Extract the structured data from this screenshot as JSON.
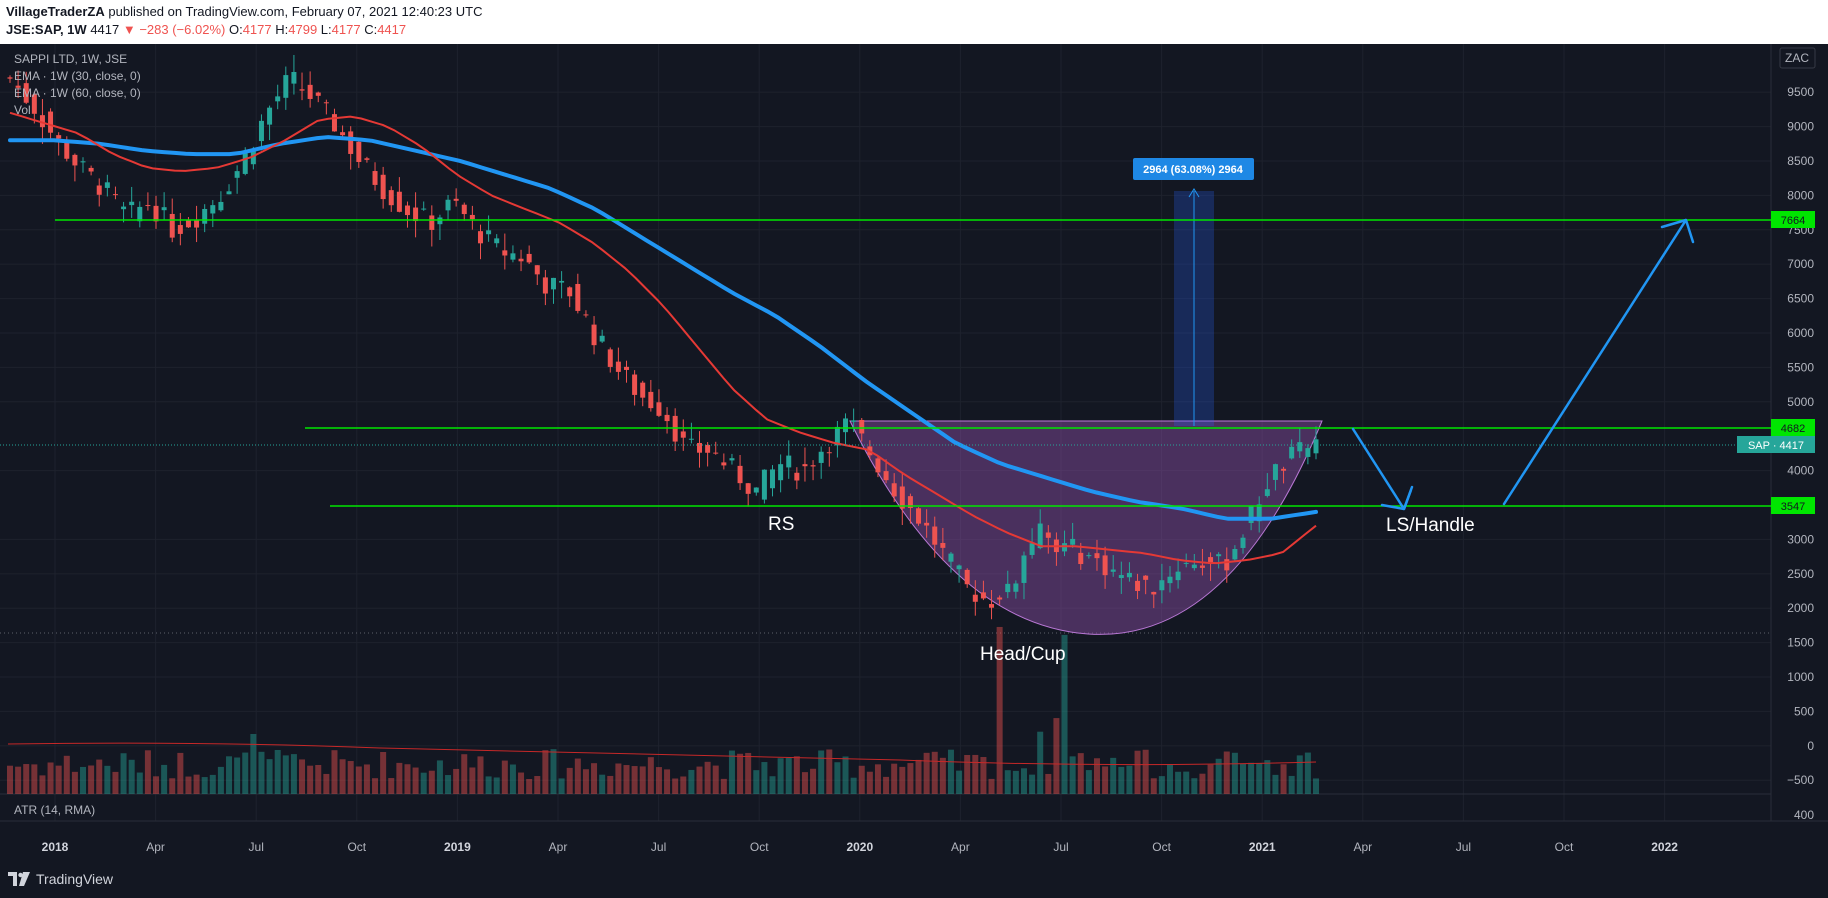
{
  "header": {
    "author": "VillageTraderZA",
    "published_text": "published on TradingView.com, February 07, 2021 12:40:23 UTC",
    "symbol": "JSE:SAP, 1W",
    "last": "4417",
    "change": "▼ −283 (−6.02%)",
    "open_label": "O:",
    "open": "4177",
    "high_label": "H:",
    "high": "4799",
    "low_label": "L:",
    "low": "4177",
    "close_label": "C:",
    "close": "4417"
  },
  "legend": {
    "series_title": "SAPPI LTD, 1W, JSE",
    "ema30": "EMA · 1W (30, close, 0)",
    "ema60": "EMA · 1W (60, close, 0)",
    "vol": "Vol",
    "atr": "ATR (14, RMA)"
  },
  "currency_button": "ZAC",
  "footer": {
    "brand": "TradingView"
  },
  "colors": {
    "up": "#26a69a",
    "down": "#ef5350",
    "ema30": "#e53935",
    "ema60": "#2196f3",
    "level": "#00e600",
    "cup": "#8e4fa8",
    "arrow": "#2196f3"
  },
  "chart_data": {
    "type": "candlestick",
    "title": "SAPPI LTD, 1W, JSE",
    "y_ticks": [
      9500,
      9000,
      8500,
      8000,
      7500,
      7000,
      6500,
      6000,
      5500,
      5000,
      4000,
      3000,
      2500,
      2000,
      1500,
      1000,
      500,
      0,
      -500
    ],
    "y_range": [
      -700,
      10200
    ],
    "atr_tick": "400",
    "x_ticks": [
      {
        "label": "2018",
        "year": true
      },
      {
        "label": "Apr",
        "year": false
      },
      {
        "label": "Jul",
        "year": false
      },
      {
        "label": "Oct",
        "year": false
      },
      {
        "label": "2019",
        "year": true
      },
      {
        "label": "Apr",
        "year": false
      },
      {
        "label": "Jul",
        "year": false
      },
      {
        "label": "Oct",
        "year": false
      },
      {
        "label": "2020",
        "year": true
      },
      {
        "label": "Apr",
        "year": false
      },
      {
        "label": "Jul",
        "year": false
      },
      {
        "label": "Oct",
        "year": false
      },
      {
        "label": "2021",
        "year": true
      },
      {
        "label": "Apr",
        "year": false
      },
      {
        "label": "Jul",
        "year": false
      },
      {
        "label": "Oct",
        "year": false
      },
      {
        "label": "2022",
        "year": true
      }
    ],
    "close_path": [
      9700,
      9300,
      8800,
      8400,
      8100,
      7700,
      7900,
      7500,
      7700,
      8000,
      8500,
      9200,
      9700,
      9400,
      9000,
      8500,
      8100,
      7800,
      7600,
      7900,
      7500,
      7200,
      7100,
      6700,
      6600,
      6000,
      5500,
      5100,
      4900,
      4300,
      4300,
      4000,
      3700,
      4100,
      4000,
      4400,
      4700,
      4200,
      3700,
      3300,
      2800,
      2300,
      2100,
      2400,
      3100,
      2900,
      2800,
      2600,
      2400,
      2300,
      2600,
      2700,
      2600,
      3200,
      3900,
      4200,
      4417
    ],
    "ema30_path": [
      9200,
      9050,
      8900,
      8600,
      8400,
      8350,
      8400,
      8550,
      8800,
      9100,
      9150,
      9000,
      8700,
      8300,
      8000,
      7800,
      7600,
      7300,
      6900,
      6400,
      5800,
      5200,
      4750,
      4550,
      4400,
      4300,
      3950,
      3650,
      3350,
      3100,
      2900,
      2900,
      2850,
      2800,
      2700,
      2650,
      2700,
      2800,
      3200
    ],
    "ema60_path": [
      8800,
      8800,
      8750,
      8650,
      8600,
      8600,
      8750,
      8850,
      8800,
      8650,
      8500,
      8300,
      8100,
      7800,
      7400,
      7000,
      6600,
      6250,
      5800,
      5300,
      4850,
      4400,
      4100,
      3900,
      3700,
      3550,
      3450,
      3300,
      3300,
      3400
    ],
    "levels": [
      {
        "value": 7664,
        "label": "7664"
      },
      {
        "value": 4682,
        "label": "4682"
      },
      {
        "value": 3547,
        "label": "3547"
      }
    ],
    "last_price_label": "SAP · 4417",
    "measure_label": "2964 (63.08%) 2964",
    "annotations": [
      "RS",
      "Head/Cup",
      "LS/Handle"
    ]
  }
}
